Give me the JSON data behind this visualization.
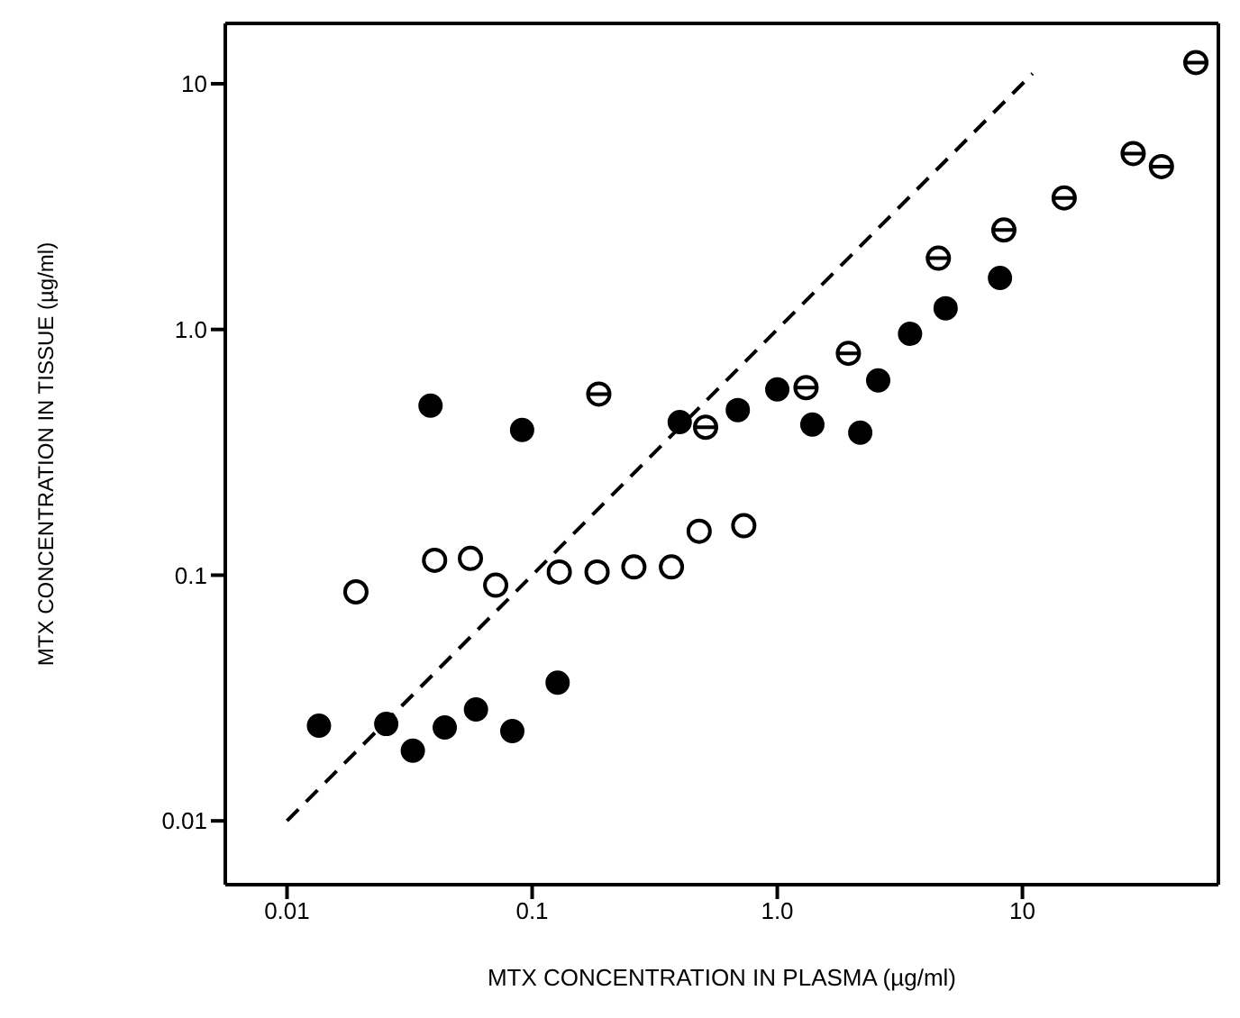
{
  "chart_data": {
    "type": "scatter",
    "xlabel": "MTX CONCENTRATION IN PLASMA (µg/ml)",
    "ylabel": "MTX CONCENTRATION IN TISSUE (µg/ml)",
    "log": "xy",
    "grid": false,
    "legend": false,
    "xlim": [
      0.0056,
      63
    ],
    "ylim": [
      0.0055,
      17.6
    ],
    "xticks": [
      0.01,
      0.1,
      {
        "value": 1,
        "label": "1.0"
      },
      10
    ],
    "yticks": [
      0.01,
      0.1,
      {
        "value": 1,
        "label": "1.0"
      },
      10
    ],
    "series": [
      {
        "color": "#000000",
        "x": [
          0.0385,
          0.091,
          0.4,
          0.69,
          1.0,
          1.39,
          2.18,
          2.58,
          3.48,
          4.86,
          8.1,
          0.0135,
          0.0254,
          0.0326,
          0.044,
          0.059,
          0.083,
          0.127
        ],
        "values": [
          0.49,
          0.39,
          0.42,
          0.47,
          0.57,
          0.41,
          0.38,
          0.62,
          0.96,
          1.22,
          1.62,
          0.0244,
          0.0248,
          0.0193,
          0.024,
          0.0284,
          0.0232,
          0.0365
        ]
      },
      {
        "color": "#000000",
        "x": [
          0.0191,
          0.04,
          0.056,
          0.071,
          0.129,
          0.184,
          0.26,
          0.37,
          0.48,
          0.73
        ],
        "values": [
          0.0855,
          0.115,
          0.117,
          0.091,
          0.103,
          0.103,
          0.108,
          0.108,
          0.151,
          0.159
        ]
      },
      {
        "color": "#000000",
        "x": [
          0.187,
          0.51,
          1.31,
          1.95,
          4.54,
          8.4,
          14.8,
          28.3,
          36.9,
          51
        ],
        "values": [
          0.546,
          0.4,
          0.58,
          0.8,
          1.95,
          2.54,
          3.43,
          5.2,
          4.6,
          12.2
        ]
      },
      {
        "type": "line",
        "line_style": "dashed",
        "marker": "none",
        "color": "#000000",
        "x": [
          0.01,
          11
        ],
        "values": [
          0.01,
          11
        ]
      }
    ]
  }
}
